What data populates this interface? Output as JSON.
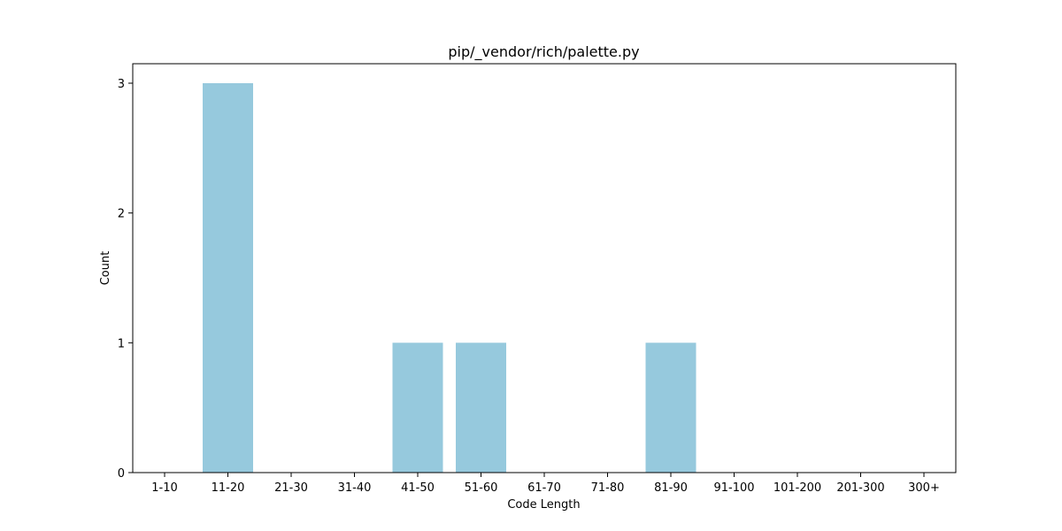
{
  "chart_data": {
    "type": "bar",
    "title": "pip/_vendor/rich/palette.py",
    "xlabel": "Code Length",
    "ylabel": "Count",
    "categories": [
      "1-10",
      "11-20",
      "21-30",
      "31-40",
      "41-50",
      "51-60",
      "61-70",
      "71-80",
      "81-90",
      "91-100",
      "101-200",
      "201-300",
      "300+"
    ],
    "values": [
      0,
      3,
      0,
      0,
      1,
      1,
      0,
      0,
      1,
      0,
      0,
      0,
      0
    ],
    "ylim": [
      0,
      3.15
    ],
    "yticks": [
      0,
      1,
      2,
      3
    ],
    "bar_color": "#96c9dd",
    "grid": false,
    "legend": "none"
  }
}
